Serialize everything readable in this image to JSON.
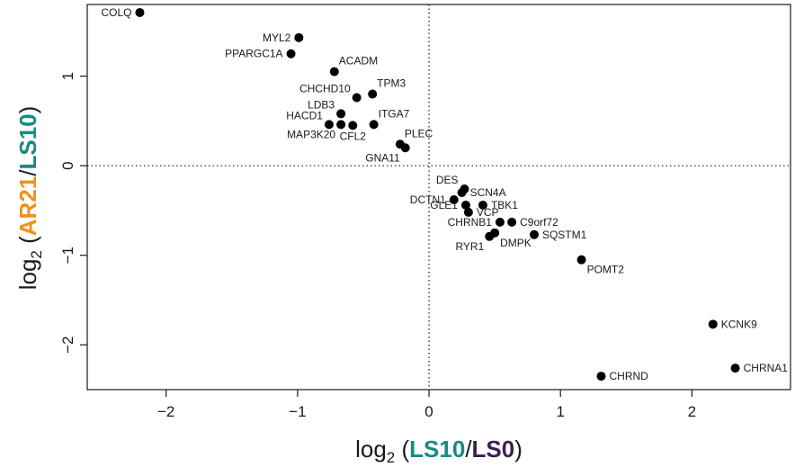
{
  "chart_data": {
    "type": "scatter",
    "xlim": [
      -2.6,
      2.75
    ],
    "ylim": [
      -2.5,
      1.8
    ],
    "x_ticks": [
      -2,
      -1,
      0,
      1,
      2
    ],
    "x_tick_labels": [
      "−2",
      "−1",
      "0",
      "1",
      "2"
    ],
    "y_ticks": [
      -2,
      -1,
      0,
      1
    ],
    "y_tick_labels": [
      "−2",
      "−1",
      "0",
      "1"
    ],
    "reference_lines": {
      "x": 0,
      "y": 0,
      "style": "dotted"
    },
    "xlabel": {
      "prefix": "log",
      "sub": "2",
      "open": " (",
      "part1": "LS10",
      "sep": "/",
      "part2": "LS0",
      "close": ")"
    },
    "ylabel": {
      "prefix": "log",
      "sub": "2",
      "open": " (",
      "part1": "AR21",
      "sep": "/",
      "part2": "LS10",
      "close": ")"
    },
    "colors": {
      "xlabel_part1": "#1a8a82",
      "xlabel_part2": "#3b1f52",
      "ylabel_part1": "#f0921e",
      "ylabel_part2": "#1a8a82",
      "points": "#000000"
    },
    "grid": false,
    "points": [
      {
        "label": "COLQ",
        "x": -2.2,
        "y": 1.71,
        "pos": "left"
      },
      {
        "label": "MYL2",
        "x": -0.99,
        "y": 1.43,
        "pos": "left"
      },
      {
        "label": "PPARGC1A",
        "x": -1.05,
        "y": 1.25,
        "pos": "left"
      },
      {
        "label": "ACADM",
        "x": -0.72,
        "y": 1.05,
        "pos": "above-right"
      },
      {
        "label": "CHCHD10",
        "x": -0.55,
        "y": 0.76,
        "pos": "above-left"
      },
      {
        "label": "TPM3",
        "x": -0.43,
        "y": 0.8,
        "pos": "above-right"
      },
      {
        "label": "LDB3",
        "x": -0.67,
        "y": 0.58,
        "pos": "above-left"
      },
      {
        "label": "ITGA7",
        "x": -0.42,
        "y": 0.46,
        "pos": "above-right"
      },
      {
        "label": "HACD1",
        "x": -0.76,
        "y": 0.46,
        "pos": "above-left"
      },
      {
        "label": "MAP3K20",
        "x": -0.67,
        "y": 0.46,
        "pos": "below-left"
      },
      {
        "label": "CFL2",
        "x": -0.58,
        "y": 0.45,
        "pos": "below"
      },
      {
        "label": "PLEC",
        "x": -0.22,
        "y": 0.24,
        "pos": "above-right"
      },
      {
        "label": "GNA11",
        "x": -0.18,
        "y": 0.2,
        "pos": "below-left"
      },
      {
        "label": "DES",
        "x": 0.27,
        "y": -0.26,
        "pos": "above-left"
      },
      {
        "label": "DCTN1",
        "x": 0.19,
        "y": -0.38,
        "pos": "left"
      },
      {
        "label": "SCN4A",
        "x": 0.25,
        "y": -0.3,
        "pos": "right"
      },
      {
        "label": "GLE1",
        "x": 0.28,
        "y": -0.44,
        "pos": "left"
      },
      {
        "label": "TBK1",
        "x": 0.41,
        "y": -0.44,
        "pos": "right"
      },
      {
        "label": "VCP",
        "x": 0.3,
        "y": -0.52,
        "pos": "right"
      },
      {
        "label": "C9orf72",
        "x": 0.63,
        "y": -0.63,
        "pos": "right"
      },
      {
        "label": "CHRNB1",
        "x": 0.54,
        "y": -0.63,
        "pos": "left"
      },
      {
        "label": "RYR1",
        "x": 0.46,
        "y": -0.79,
        "pos": "below-left"
      },
      {
        "label": "DMPK",
        "x": 0.5,
        "y": -0.75,
        "pos": "below-right"
      },
      {
        "label": "SQSTM1",
        "x": 0.8,
        "y": -0.77,
        "pos": "right"
      },
      {
        "label": "POMT2",
        "x": 1.16,
        "y": -1.05,
        "pos": "below-right"
      },
      {
        "label": "KCNK9",
        "x": 2.16,
        "y": -1.77,
        "pos": "right"
      },
      {
        "label": "CHRNA1",
        "x": 2.33,
        "y": -2.26,
        "pos": "right"
      },
      {
        "label": "CHRND",
        "x": 1.31,
        "y": -2.35,
        "pos": "right"
      }
    ]
  }
}
